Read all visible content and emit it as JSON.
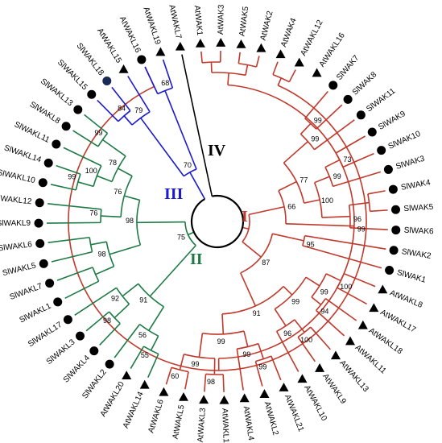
{
  "figure": {
    "colors": {
      "I": "#c0392b",
      "II": "#1e7a45",
      "III": "#1a1acc",
      "IV": "#000000",
      "at_marker": "#000000",
      "sl_marker": "#000000",
      "sl_marker_highlight": "#1b2a55"
    },
    "clades": [
      {
        "id": "I",
        "label": "I"
      },
      {
        "id": "II",
        "label": "II"
      },
      {
        "id": "III",
        "label": "III"
      },
      {
        "id": "IV",
        "label": "IV"
      }
    ],
    "leaves": [
      {
        "name": "AtWAKL7",
        "clade": "IV",
        "marker": "triangle"
      },
      {
        "name": "AtWAK1",
        "clade": "I",
        "marker": "triangle"
      },
      {
        "name": "AtWAK3",
        "clade": "I",
        "marker": "triangle"
      },
      {
        "name": "AtWAK5",
        "clade": "I",
        "marker": "triangle"
      },
      {
        "name": "AtWAK2",
        "clade": "I",
        "marker": "triangle"
      },
      {
        "name": "AtWAK4",
        "clade": "I",
        "marker": "triangle"
      },
      {
        "name": "AtWAKL12",
        "clade": "I",
        "marker": "triangle"
      },
      {
        "name": "AtWAKL16",
        "clade": "I",
        "marker": "triangle"
      },
      {
        "name": "SlWAK7",
        "clade": "I",
        "marker": "circle"
      },
      {
        "name": "SlWAK8",
        "clade": "I",
        "marker": "circle"
      },
      {
        "name": "SlWAK11",
        "clade": "I",
        "marker": "circle"
      },
      {
        "name": "SlWAK9",
        "clade": "I",
        "marker": "circle"
      },
      {
        "name": "SlWAK10",
        "clade": "I",
        "marker": "circle"
      },
      {
        "name": "SlWAK3",
        "clade": "I",
        "marker": "circle"
      },
      {
        "name": "SlWAK4",
        "clade": "I",
        "marker": "circle"
      },
      {
        "name": "SlWAK5",
        "clade": "I",
        "marker": "circle"
      },
      {
        "name": "SlWAK6",
        "clade": "I",
        "marker": "circle"
      },
      {
        "name": "SlWAK2",
        "clade": "I",
        "marker": "circle"
      },
      {
        "name": "SlWAK1",
        "clade": "I",
        "marker": "circle"
      },
      {
        "name": "AtWAKL8",
        "clade": "I",
        "marker": "triangle"
      },
      {
        "name": "AtWAKL17",
        "clade": "I",
        "marker": "triangle"
      },
      {
        "name": "AtWAKL18",
        "clade": "I",
        "marker": "triangle"
      },
      {
        "name": "AtWAKL11",
        "clade": "I",
        "marker": "triangle"
      },
      {
        "name": "AtWAKL13",
        "clade": "I",
        "marker": "triangle"
      },
      {
        "name": "AtWAKL9",
        "clade": "I",
        "marker": "triangle"
      },
      {
        "name": "AtWAKL10",
        "clade": "I",
        "marker": "triangle"
      },
      {
        "name": "AtWAKL21",
        "clade": "I",
        "marker": "triangle"
      },
      {
        "name": "AtWAKL2",
        "clade": "I",
        "marker": "triangle"
      },
      {
        "name": "AtWAKL4",
        "clade": "I",
        "marker": "triangle"
      },
      {
        "name": "AtWAKL1",
        "clade": "I",
        "marker": "triangle"
      },
      {
        "name": "AtWAKL3",
        "clade": "I",
        "marker": "triangle"
      },
      {
        "name": "AtWAKL5",
        "clade": "I",
        "marker": "triangle"
      },
      {
        "name": "AtWAKL6",
        "clade": "I",
        "marker": "triangle"
      },
      {
        "name": "AtWAKL14",
        "clade": "II",
        "marker": "triangle"
      },
      {
        "name": "AtWAKL20",
        "clade": "II",
        "marker": "triangle"
      },
      {
        "name": "SlWAKL2",
        "clade": "II",
        "marker": "circle"
      },
      {
        "name": "SlWAKL4",
        "clade": "II",
        "marker": "circle"
      },
      {
        "name": "SlWAKL3",
        "clade": "II",
        "marker": "circle"
      },
      {
        "name": "SlWAKL17",
        "clade": "II",
        "marker": "circle"
      },
      {
        "name": "SlWAKL1",
        "clade": "II",
        "marker": "circle"
      },
      {
        "name": "SlWAKL7",
        "clade": "II",
        "marker": "circle"
      },
      {
        "name": "SlWAKL5",
        "clade": "II",
        "marker": "circle"
      },
      {
        "name": "SlWAKL6",
        "clade": "II",
        "marker": "circle"
      },
      {
        "name": "SlWAKL9",
        "clade": "II",
        "marker": "circle"
      },
      {
        "name": "SlWAKL12",
        "clade": "II",
        "marker": "circle"
      },
      {
        "name": "SlWAKL10",
        "clade": "II",
        "marker": "circle"
      },
      {
        "name": "SlWAKL14",
        "clade": "II",
        "marker": "circle"
      },
      {
        "name": "SlWAKL11",
        "clade": "II",
        "marker": "circle"
      },
      {
        "name": "SlWAKL8",
        "clade": "II",
        "marker": "circle"
      },
      {
        "name": "SlWAKL13",
        "clade": "II",
        "marker": "circle"
      },
      {
        "name": "SlWAKL15",
        "clade": "III",
        "marker": "circle"
      },
      {
        "name": "SlWAKL18",
        "clade": "III",
        "marker": "circle_highlight"
      },
      {
        "name": "AtWAKL15",
        "clade": "III",
        "marker": "triangle"
      },
      {
        "name": "AtWAKL16",
        "clade": "III",
        "marker": "circle"
      },
      {
        "name": "AtWAKL19",
        "clade": "III",
        "marker": "triangle"
      }
    ],
    "bootstrap_values": [
      "99",
      "99",
      "99",
      "99",
      "73",
      "100",
      "96",
      "83",
      "66",
      "77",
      "87",
      "95",
      "91",
      "99",
      "99",
      "96",
      "99",
      "94",
      "100",
      "100",
      "99",
      "99",
      "60",
      "98",
      "99",
      "78",
      "100",
      "99",
      "76",
      "76",
      "98",
      "75",
      "92",
      "98",
      "91",
      "56",
      "55",
      "70",
      "68",
      "79",
      "84"
    ]
  }
}
